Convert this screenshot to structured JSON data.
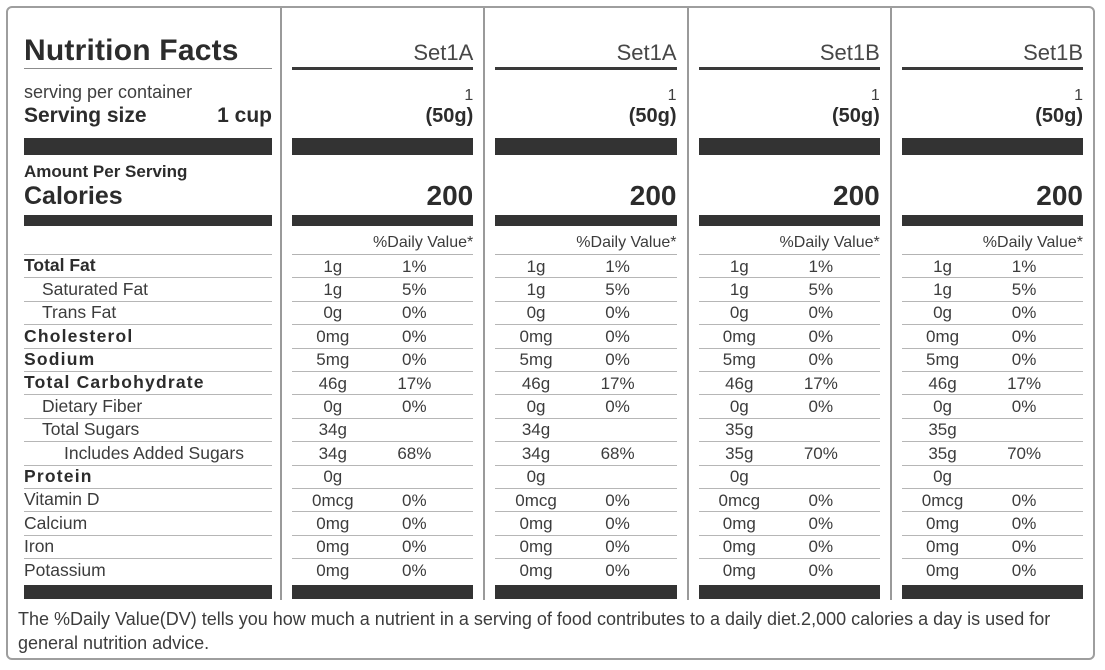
{
  "title": "Nutrition Facts",
  "serving": {
    "per_container_label": "serving per container",
    "serving_size_label": "Serving size",
    "serving_size_value": "1 cup"
  },
  "amount_per_serving_label": "Amount Per Serving",
  "calories_label": "Calories",
  "daily_value_header": "%Daily Value*",
  "columns": [
    {
      "name": "Set1A",
      "servings": "1",
      "size": "(50g)",
      "calories": "200"
    },
    {
      "name": "Set1A",
      "servings": "1",
      "size": "(50g)",
      "calories": "200"
    },
    {
      "name": "Set1B",
      "servings": "1",
      "size": "(50g)",
      "calories": "200"
    },
    {
      "name": "Set1B",
      "servings": "1",
      "size": "(50g)",
      "calories": "200"
    }
  ],
  "rows": [
    {
      "label": "Total Fat",
      "bold": true,
      "spaced": false,
      "indent": 0,
      "values": [
        [
          "1g",
          "1%"
        ],
        [
          "1g",
          "1%"
        ],
        [
          "1g",
          "1%"
        ],
        [
          "1g",
          "1%"
        ]
      ]
    },
    {
      "label": "Saturated Fat",
      "bold": false,
      "spaced": false,
      "indent": 1,
      "values": [
        [
          "1g",
          "5%"
        ],
        [
          "1g",
          "5%"
        ],
        [
          "1g",
          "5%"
        ],
        [
          "1g",
          "5%"
        ]
      ]
    },
    {
      "label": "Trans Fat",
      "bold": false,
      "spaced": false,
      "indent": 1,
      "values": [
        [
          "0g",
          "0%"
        ],
        [
          "0g",
          "0%"
        ],
        [
          "0g",
          "0%"
        ],
        [
          "0g",
          "0%"
        ]
      ]
    },
    {
      "label": "Cholesterol",
      "bold": true,
      "spaced": true,
      "indent": 0,
      "values": [
        [
          "0mg",
          "0%"
        ],
        [
          "0mg",
          "0%"
        ],
        [
          "0mg",
          "0%"
        ],
        [
          "0mg",
          "0%"
        ]
      ]
    },
    {
      "label": "Sodium",
      "bold": true,
      "spaced": true,
      "indent": 0,
      "values": [
        [
          "5mg",
          "0%"
        ],
        [
          "5mg",
          "0%"
        ],
        [
          "5mg",
          "0%"
        ],
        [
          "5mg",
          "0%"
        ]
      ]
    },
    {
      "label": "Total Carbohydrate",
      "bold": true,
      "spaced": true,
      "indent": 0,
      "values": [
        [
          "46g",
          "17%"
        ],
        [
          "46g",
          "17%"
        ],
        [
          "46g",
          "17%"
        ],
        [
          "46g",
          "17%"
        ]
      ]
    },
    {
      "label": "Dietary Fiber",
      "bold": false,
      "spaced": false,
      "indent": 1,
      "values": [
        [
          "0g",
          "0%"
        ],
        [
          "0g",
          "0%"
        ],
        [
          "0g",
          "0%"
        ],
        [
          "0g",
          "0%"
        ]
      ]
    },
    {
      "label": "Total Sugars",
      "bold": false,
      "spaced": false,
      "indent": 1,
      "values": [
        [
          "34g",
          ""
        ],
        [
          "34g",
          ""
        ],
        [
          "35g",
          ""
        ],
        [
          "35g",
          ""
        ]
      ]
    },
    {
      "label": "Includes Added Sugars",
      "bold": false,
      "spaced": false,
      "indent": 2,
      "values": [
        [
          "34g",
          "68%"
        ],
        [
          "34g",
          "68%"
        ],
        [
          "35g",
          "70%"
        ],
        [
          "35g",
          "70%"
        ]
      ]
    },
    {
      "label": "Protein",
      "bold": true,
      "spaced": true,
      "indent": 0,
      "values": [
        [
          "0g",
          ""
        ],
        [
          "0g",
          ""
        ],
        [
          "0g",
          ""
        ],
        [
          "0g",
          ""
        ]
      ]
    },
    {
      "label": "Vitamin D",
      "bold": false,
      "spaced": false,
      "indent": 0,
      "values": [
        [
          "0mcg",
          "0%"
        ],
        [
          "0mcg",
          "0%"
        ],
        [
          "0mcg",
          "0%"
        ],
        [
          "0mcg",
          "0%"
        ]
      ]
    },
    {
      "label": "Calcium",
      "bold": false,
      "spaced": false,
      "indent": 0,
      "values": [
        [
          "0mg",
          "0%"
        ],
        [
          "0mg",
          "0%"
        ],
        [
          "0mg",
          "0%"
        ],
        [
          "0mg",
          "0%"
        ]
      ]
    },
    {
      "label": "Iron",
      "bold": false,
      "spaced": false,
      "indent": 0,
      "values": [
        [
          "0mg",
          "0%"
        ],
        [
          "0mg",
          "0%"
        ],
        [
          "0mg",
          "0%"
        ],
        [
          "0mg",
          "0%"
        ]
      ]
    },
    {
      "label": "Potassium",
      "bold": false,
      "spaced": false,
      "indent": 0,
      "values": [
        [
          "0mg",
          "0%"
        ],
        [
          "0mg",
          "0%"
        ],
        [
          "0mg",
          "0%"
        ],
        [
          "0mg",
          "0%"
        ]
      ]
    }
  ],
  "footnote": "The %Daily Value(DV) tells you how much a nutrient in a serving of food contributes to a daily diet.2,000 calories a day is used for general nutrition advice.",
  "colors": {
    "bar": "#333333",
    "text": "#3c3c3c",
    "bold_text": "#2c2c2c",
    "border": "#9e9e9e",
    "row_line": "#b6b6b6"
  }
}
